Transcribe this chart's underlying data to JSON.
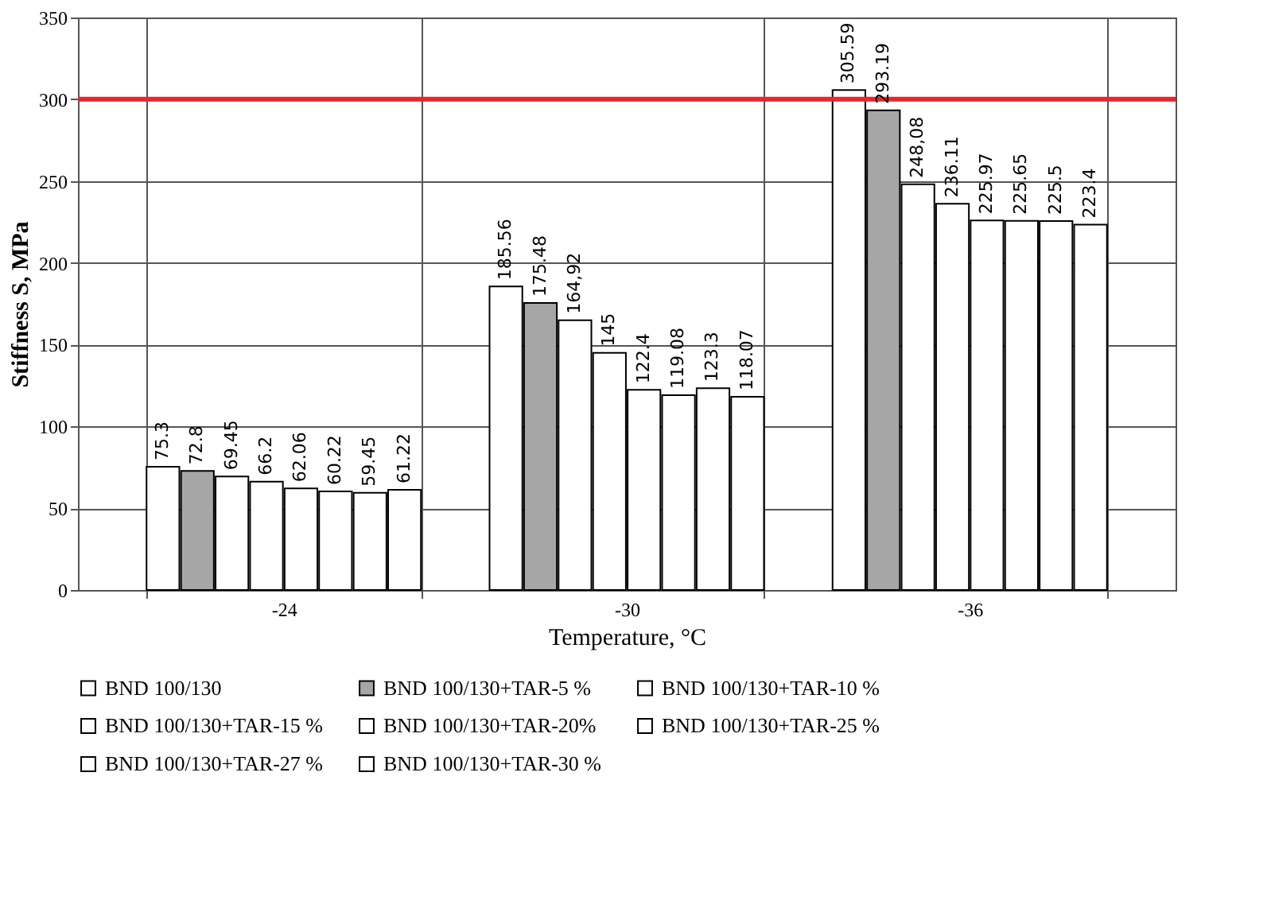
{
  "chart_data": {
    "type": "bar",
    "xlabel": "Temperature, °C",
    "ylabel": "Stiffness S, MPa",
    "categories": [
      "-24",
      "-30",
      "-36"
    ],
    "series": [
      {
        "name": "BND 100/130",
        "color": "#ffffff",
        "values": [
          75.3,
          185.56,
          305.59
        ],
        "value_labels": [
          "75.3",
          "185.56",
          "305.59"
        ]
      },
      {
        "name": "BND 100/130+TAR-5 %",
        "color": "#a6a6a6",
        "values": [
          72.8,
          175.48,
          293.19
        ],
        "value_labels": [
          "72.8",
          "175.48",
          "293.19"
        ]
      },
      {
        "name": "BND 100/130+TAR-10 %",
        "color": "#ffffff",
        "values": [
          69.45,
          164.92,
          248.08
        ],
        "value_labels": [
          "69.45",
          "164,92",
          "248,08"
        ]
      },
      {
        "name": "BND 100/130+TAR-15 %",
        "color": "#ffffff",
        "values": [
          66.2,
          145,
          236.11
        ],
        "value_labels": [
          "66.2",
          "145",
          "236.11"
        ]
      },
      {
        "name": "BND 100/130+TAR-20%",
        "color": "#ffffff",
        "values": [
          62.06,
          122.4,
          225.97
        ],
        "value_labels": [
          "62.06",
          "122.4",
          "225.97"
        ]
      },
      {
        "name": "BND 100/130+TAR-25 %",
        "color": "#ffffff",
        "values": [
          60.22,
          119.08,
          225.65
        ],
        "value_labels": [
          "60.22",
          "119.08",
          "225.65"
        ]
      },
      {
        "name": "BND 100/130+TAR-27 %",
        "color": "#ffffff",
        "values": [
          59.45,
          123.3,
          225.5
        ],
        "value_labels": [
          "59.45",
          "123.3",
          "225.5"
        ]
      },
      {
        "name": "BND 100/130+TAR-30 %",
        "color": "#ffffff",
        "values": [
          61.22,
          118.07,
          223.4
        ],
        "value_labels": [
          "61.22",
          "118.07",
          "223.4"
        ]
      }
    ],
    "ylim": [
      0,
      350
    ],
    "yticks": [
      0,
      50,
      100,
      150,
      200,
      250,
      300,
      350
    ],
    "ref_lines": [
      {
        "axis": "y",
        "value": 300,
        "color": "#e8262b"
      }
    ],
    "grid": true,
    "legend": "bottom"
  }
}
